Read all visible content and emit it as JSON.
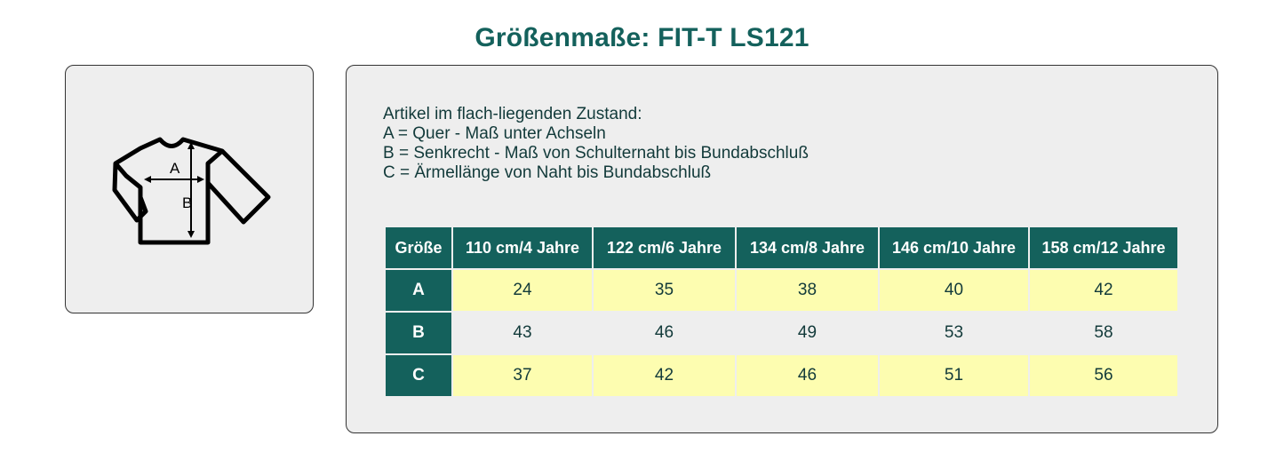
{
  "title": "Größenmaße: FIT-T LS121",
  "illustration": {
    "icon": "longsleeve-shirt-measurement-icon",
    "label_a": "A",
    "label_b": "B"
  },
  "description": {
    "lines": [
      "Artikel im flach-liegenden Zustand:",
      "A = Quer - Maß unter Achseln",
      "B = Senkrecht - Maß von Schulternaht bis Bundabschluß",
      "C = Ärmellänge von Naht bis Bundabschluß"
    ]
  },
  "table": {
    "corner_header": "Größe",
    "columns": [
      "110 cm/4 Jahre",
      "122 cm/6 Jahre",
      "134 cm/8 Jahre",
      "146 cm/10 Jahre",
      "158 cm/12 Jahre"
    ],
    "rows": [
      {
        "label": "A",
        "values": [
          "24",
          "35",
          "38",
          "40",
          "42"
        ]
      },
      {
        "label": "B",
        "values": [
          "43",
          "46",
          "49",
          "53",
          "58"
        ]
      },
      {
        "label": "C",
        "values": [
          "37",
          "42",
          "46",
          "51",
          "56"
        ]
      }
    ]
  },
  "colors": {
    "accent": "#14615c",
    "highlight_row": "#fdfdb0",
    "panel_bg": "#eeeeee",
    "text": "#123a3a"
  }
}
